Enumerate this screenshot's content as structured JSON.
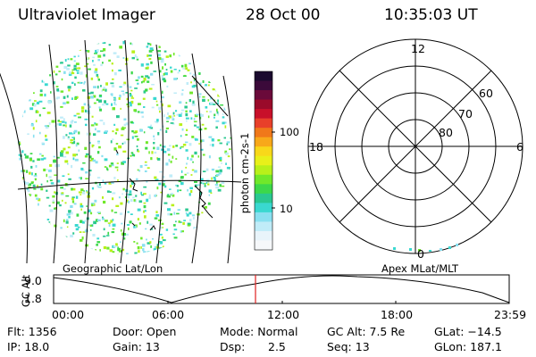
{
  "header": {
    "title": "Ultraviolet Imager",
    "date": "28 Oct 00",
    "time": "10:35:03 UT"
  },
  "colorbar": {
    "unit_label": "photon cm-2s-1",
    "ticks": [
      "100",
      "10"
    ],
    "colors": [
      "#1a0a2e",
      "#3b0a3a",
      "#6a0a3a",
      "#9a0a2a",
      "#c8102a",
      "#e8402a",
      "#f0781a",
      "#f8a81a",
      "#f8d81a",
      "#e8f01a",
      "#b8f01a",
      "#70e82a",
      "#3cd84a",
      "#2ac890",
      "#3ad8d0",
      "#8ae0f0",
      "#c0ecf8",
      "#e8f4fa",
      "#f6f8fa"
    ]
  },
  "polar": {
    "mlt_labels": [
      "12",
      "18",
      "6",
      "0"
    ],
    "lat_labels": [
      "60",
      "70",
      "80"
    ]
  },
  "panel_labels": {
    "left": "Geographic Lat/Lon",
    "right": "Apex MLat/MLT"
  },
  "altitude_plot": {
    "ylabel": "GC Alt",
    "ytick_top": "9.0",
    "ytick_bottom": "1.8",
    "xticks": [
      "00:00",
      "06:00",
      "12:00",
      "18:00",
      "23:59"
    ],
    "marker_color": "#e02020"
  },
  "status": {
    "flt": "Flt: 1356",
    "ip": "IP: 18.0",
    "door": "Door: Open",
    "gain": "Gain: 13",
    "mode": "Mode: Normal",
    "dsp_label": "Dsp:",
    "dsp_value": "2.5",
    "gcalt": "GC Alt: 7.5 Re",
    "seq": "Seq: 13",
    "glat": "GLat: −14.5",
    "glon": "GLon: 187.1"
  }
}
